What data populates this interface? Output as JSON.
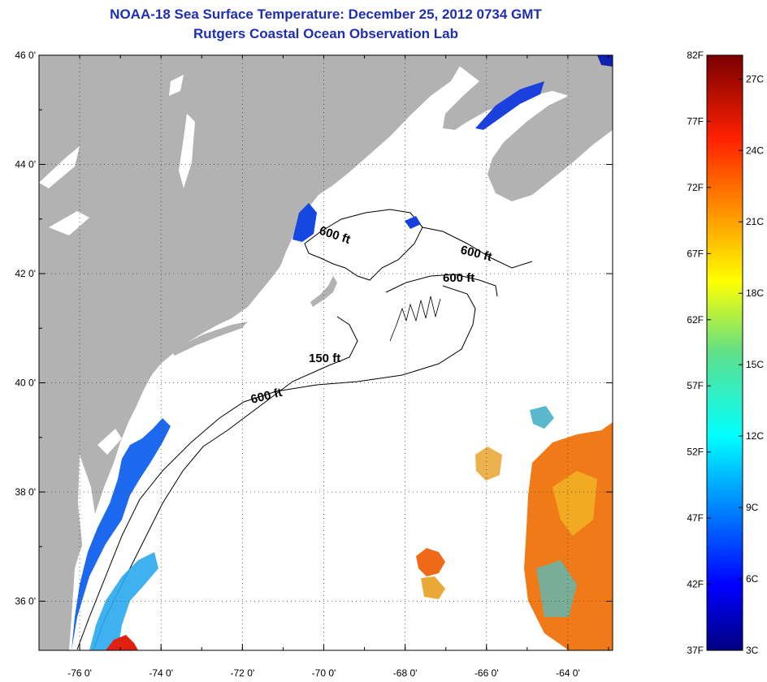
{
  "header": {
    "title": "NOAA-18 Sea Surface Temperature:  December 25, 2012 0734 GMT",
    "subtitle": "Rutgers Coastal Ocean Observation Lab"
  },
  "map": {
    "lat_ticks": [
      {
        "value": 46,
        "label": "46 0'"
      },
      {
        "value": 44,
        "label": "44 0'"
      },
      {
        "value": 42,
        "label": "42 0'"
      },
      {
        "value": 40,
        "label": "40 0'"
      },
      {
        "value": 38,
        "label": "38 0'"
      },
      {
        "value": 36,
        "label": "36 0'"
      }
    ],
    "lon_ticks": [
      {
        "value": -76,
        "label": "-76 0'"
      },
      {
        "value": -74,
        "label": "-74 0'"
      },
      {
        "value": -72,
        "label": "-72 0'"
      },
      {
        "value": -70,
        "label": "-70 0'"
      },
      {
        "value": -68,
        "label": "-68 0'"
      },
      {
        "value": -66,
        "label": "-66 0'"
      },
      {
        "value": -64,
        "label": "-64 0'"
      }
    ],
    "contour_labels": [
      {
        "text": "600 ft"
      },
      {
        "text": "600 ft"
      },
      {
        "text": "600 ft"
      },
      {
        "text": "150 ft"
      },
      {
        "text": "600 ft"
      }
    ],
    "colors": {
      "land": "#b2b2b2",
      "water": "#ffffff",
      "grid": "#555555"
    }
  },
  "colorbar": {
    "fahrenheit_labels": [
      "82F",
      "77F",
      "72F",
      "67F",
      "62F",
      "57F",
      "52F",
      "47F",
      "42F",
      "37F"
    ],
    "celsius_labels": [
      "27C",
      "24C",
      "21C",
      "18C",
      "15C",
      "12C",
      "9C",
      "6C",
      "3C"
    ],
    "range_f": [
      37,
      82
    ],
    "range_c": [
      3,
      28
    ]
  }
}
